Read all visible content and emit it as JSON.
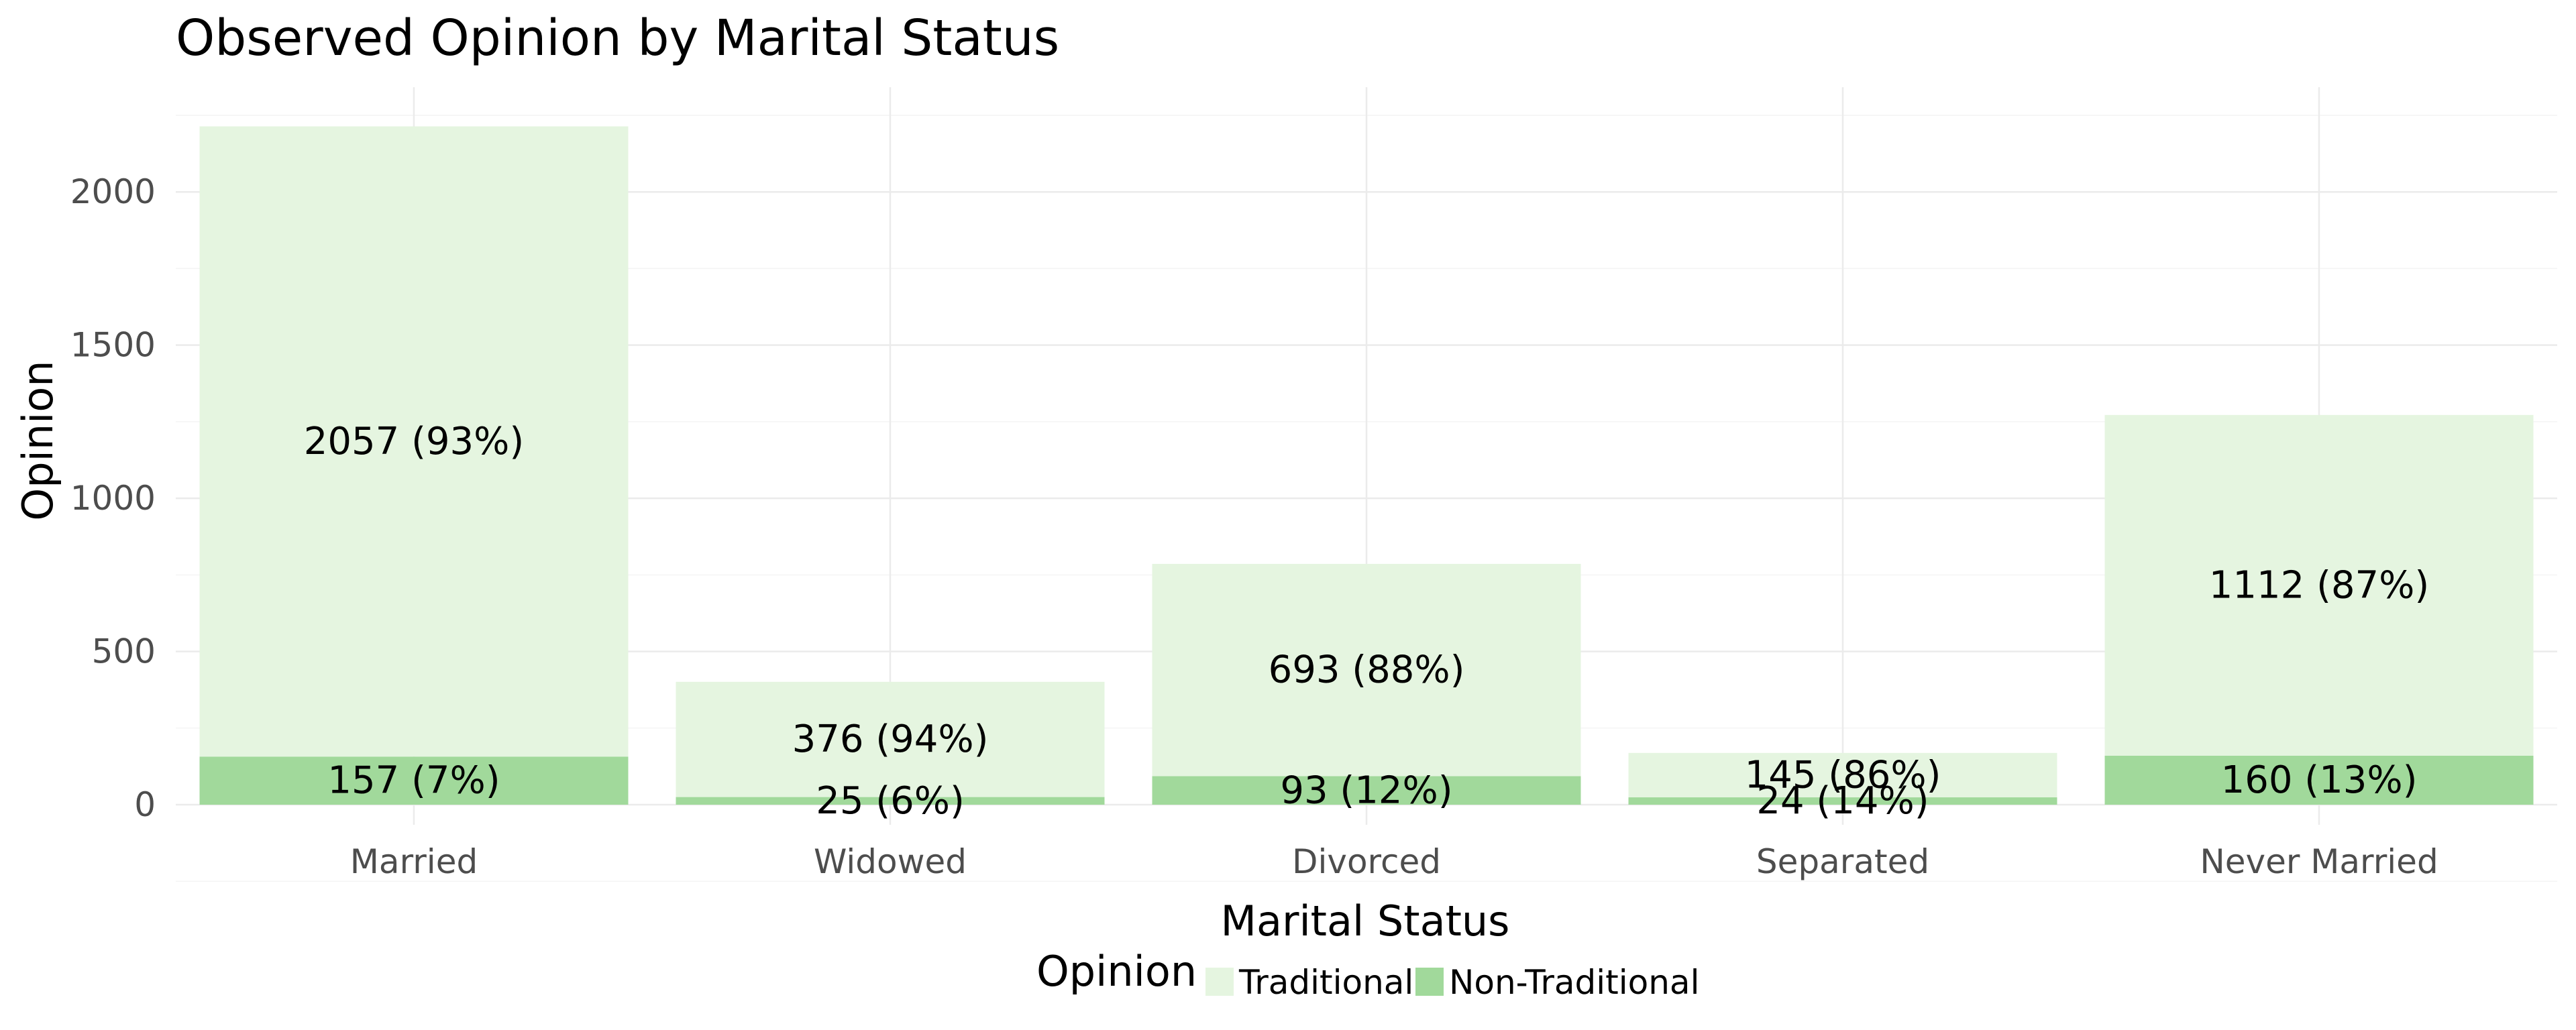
{
  "chart_data": {
    "type": "bar",
    "stacked": true,
    "title": "Observed Opinion by Marital Status",
    "xlabel": "Marital Status",
    "ylabel": "Opinion",
    "categories": [
      "Married",
      "Widowed",
      "Divorced",
      "Separated",
      "Never Married"
    ],
    "series": [
      {
        "name": "Non-Traditional",
        "color": "#a1d99b",
        "values": [
          157,
          25,
          93,
          24,
          160
        ],
        "labels": [
          "157 (7%)",
          "25 (6%)",
          "93 (12%)",
          "24 (14%)",
          "160 (13%)"
        ]
      },
      {
        "name": "Traditional",
        "color": "#e5f5e0",
        "values": [
          2057,
          376,
          693,
          145,
          1112
        ],
        "labels": [
          "2057 (93%)",
          "376 (94%)",
          "693 (88%)",
          "145 (86%)",
          "1112 (87%)"
        ]
      }
    ],
    "ylim": [
      0,
      2320
    ],
    "yticks": [
      0,
      500,
      1000,
      1500,
      2000
    ],
    "grid": true,
    "legend": {
      "title": "Opinion",
      "position": "bottom",
      "entries": [
        {
          "label": "Traditional",
          "color": "#e5f5e0"
        },
        {
          "label": "Non-Traditional",
          "color": "#a1d99b"
        }
      ]
    }
  }
}
